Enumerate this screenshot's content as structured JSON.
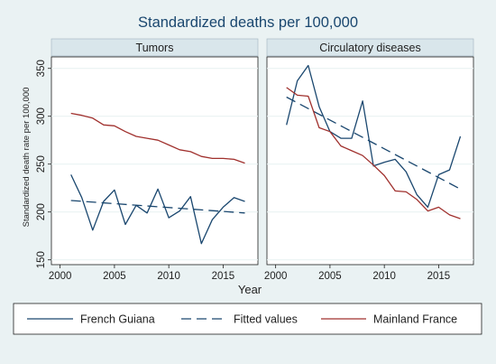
{
  "chart_data": {
    "type": "line",
    "title": "Standardized deaths per 100,000",
    "xlabel": "Year",
    "ylabel": "Standardized death rate per 100,000",
    "ylim": [
      145,
      362
    ],
    "xlim": [
      1999.2,
      2018.2
    ],
    "yticks": [
      150,
      200,
      250,
      300,
      350
    ],
    "xticks": [
      2000,
      2005,
      2010,
      2015
    ],
    "grid": true,
    "legend_position": "bottom",
    "colors": {
      "French Guiana": "#1a476f",
      "Fitted values": "#1a476f",
      "Mainland France": "#a0302d",
      "panel_background": "#eaf2f3",
      "strip_background": "#d9e6eb",
      "outer_background": "#eaf2f3"
    },
    "legend": [
      "French Guiana",
      "Fitted values",
      "Mainland France"
    ],
    "panels": [
      {
        "title": "Tumors",
        "series": [
          {
            "name": "French Guiana",
            "style": "solid",
            "x": [
              2001,
              2002,
              2003,
              2004,
              2005,
              2006,
              2007,
              2008,
              2009,
              2010,
              2011,
              2012,
              2013,
              2014,
              2015,
              2016,
              2017
            ],
            "values": [
              239,
              215,
              181,
              211,
              223,
              187,
              207,
              199,
              224,
              194,
              201,
              216,
              167,
              192,
              205,
              215,
              211
            ]
          },
          {
            "name": "Fitted values",
            "style": "dashed",
            "x": [
              2001,
              2017
            ],
            "values": [
              212,
              199
            ]
          },
          {
            "name": "Mainland France",
            "style": "solid",
            "x": [
              2001,
              2002,
              2003,
              2004,
              2005,
              2006,
              2007,
              2008,
              2009,
              2010,
              2011,
              2012,
              2013,
              2014,
              2015,
              2016,
              2017
            ],
            "values": [
              303,
              301,
              298,
              291,
              290,
              284,
              279,
              277,
              275,
              270,
              265,
              263,
              258,
              256,
              256,
              255,
              251
            ]
          }
        ]
      },
      {
        "title": "Circulatory diseases",
        "series": [
          {
            "name": "French Guiana",
            "style": "solid",
            "x": [
              2001,
              2002,
              2003,
              2004,
              2005,
              2006,
              2007,
              2008,
              2009,
              2010,
              2011,
              2012,
              2013,
              2014,
              2015,
              2016,
              2017
            ],
            "values": [
              291,
              337,
              353,
              310,
              284,
              277,
              277,
              316,
              248,
              252,
              255,
              242,
              218,
              205,
              239,
              244,
              279
            ]
          },
          {
            "name": "Fitted values",
            "style": "dashed",
            "x": [
              2001,
              2017
            ],
            "values": [
              320,
              224
            ]
          },
          {
            "name": "Mainland France",
            "style": "solid",
            "x": [
              2001,
              2002,
              2003,
              2004,
              2005,
              2006,
              2007,
              2008,
              2009,
              2010,
              2011,
              2012,
              2013,
              2014,
              2015,
              2016,
              2017
            ],
            "values": [
              330,
              322,
              321,
              288,
              284,
              269,
              264,
              259,
              249,
              238,
              222,
              221,
              213,
              201,
              205,
              197,
              193
            ]
          }
        ]
      }
    ]
  }
}
